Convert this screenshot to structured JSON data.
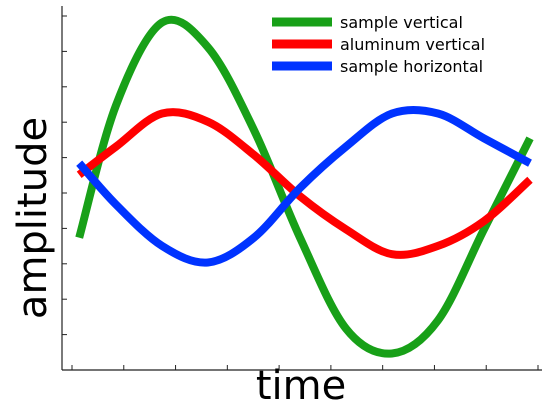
{
  "chart_data": {
    "type": "line",
    "title": "",
    "xlabel": "time",
    "ylabel": "amplitude",
    "xlim": [
      0,
      1
    ],
    "ylim": [
      -1.1,
      1.1
    ],
    "x_tick_labels": [],
    "y_tick_labels": [],
    "grid": false,
    "legend_position": "top-right",
    "series": [
      {
        "name": "sample vertical",
        "color": "#18a018",
        "period": 0.98,
        "x": [
          0.02,
          0.1,
          0.2,
          0.3,
          0.4,
          0.5,
          0.6,
          0.7,
          0.8,
          0.9,
          1.0
        ],
        "values": [
          -0.3,
          0.5,
          1.0,
          0.85,
          0.35,
          -0.3,
          -0.85,
          -1.0,
          -0.8,
          -0.25,
          0.3
        ]
      },
      {
        "name": "aluminum vertical",
        "color": "#ff0000",
        "period": 0.98,
        "x": [
          0.02,
          0.1,
          0.2,
          0.3,
          0.4,
          0.5,
          0.6,
          0.7,
          0.8,
          0.9,
          1.0
        ],
        "values": [
          0.08,
          0.25,
          0.45,
          0.4,
          0.2,
          -0.05,
          -0.25,
          -0.4,
          -0.35,
          -0.2,
          0.05
        ]
      },
      {
        "name": "sample horizontal",
        "color": "#0033ff",
        "period": 0.98,
        "x": [
          0.02,
          0.1,
          0.2,
          0.3,
          0.4,
          0.5,
          0.6,
          0.7,
          0.8,
          0.9,
          1.0
        ],
        "values": [
          0.15,
          -0.1,
          -0.35,
          -0.45,
          -0.3,
          0.0,
          0.25,
          0.45,
          0.45,
          0.3,
          0.15
        ]
      }
    ]
  }
}
